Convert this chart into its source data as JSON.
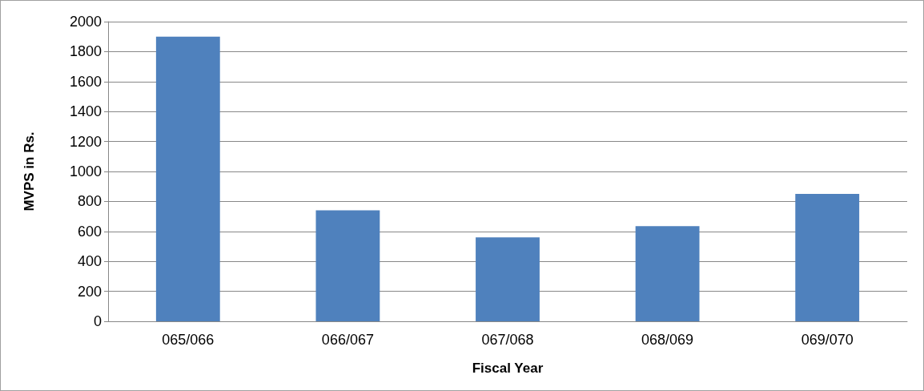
{
  "chart_data": {
    "type": "bar",
    "xlabel": "Fiscal Year",
    "ylabel": "MVPS in Rs.",
    "categories": [
      "065/066",
      "066/067",
      "067/068",
      "068/069",
      "069/070"
    ],
    "values": [
      1900,
      740,
      560,
      635,
      850
    ],
    "color": "#4f81bd",
    "ylim": [
      0,
      2000
    ],
    "yticks": [
      0,
      200,
      400,
      600,
      800,
      1000,
      1200,
      1400,
      1600,
      1800,
      2000
    ],
    "grid": "y"
  }
}
